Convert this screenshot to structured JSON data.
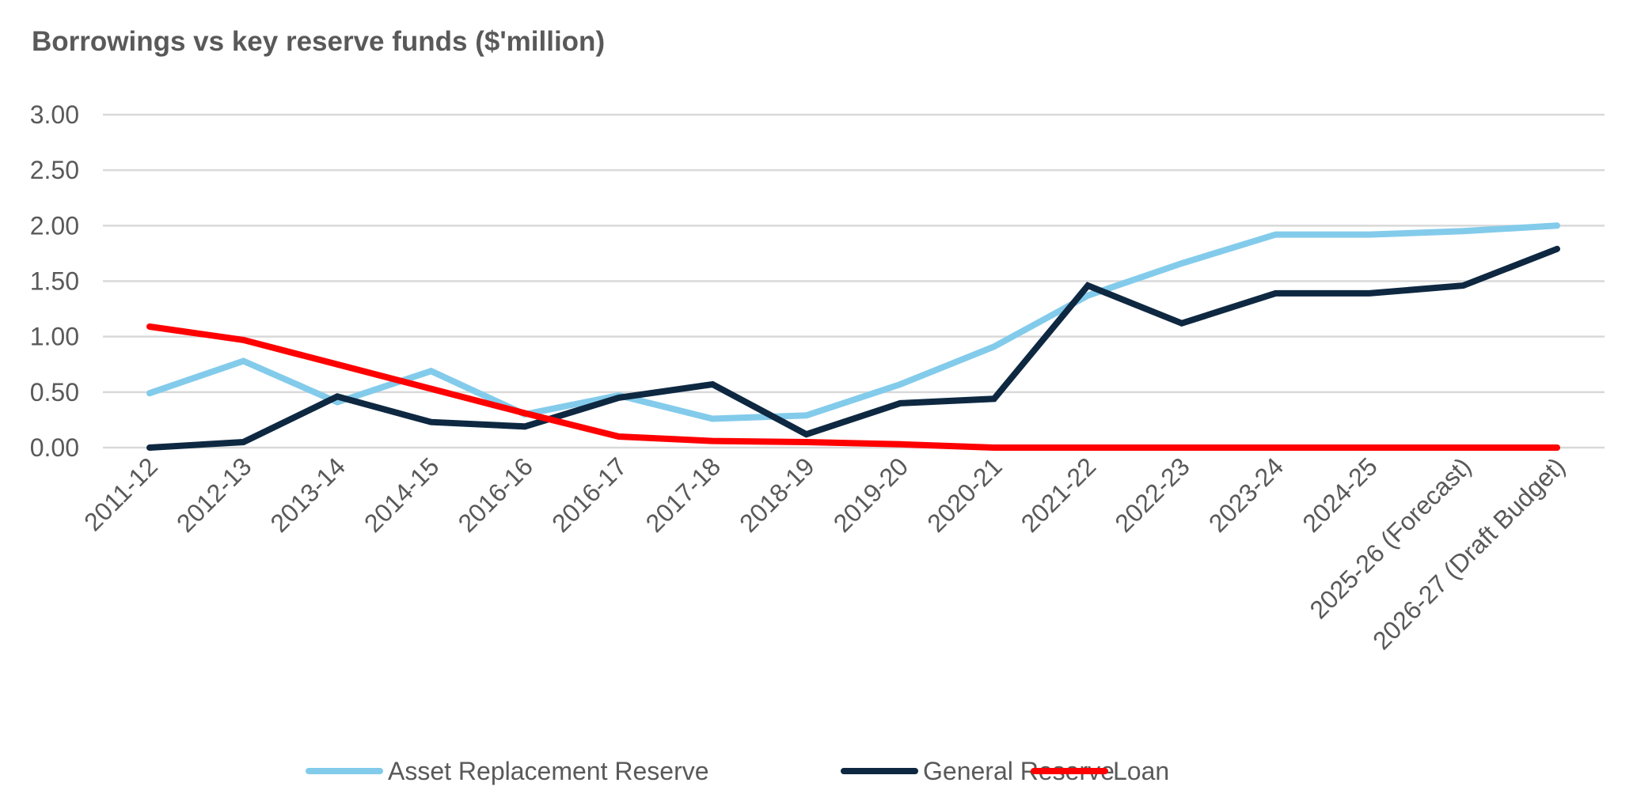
{
  "chart_data": {
    "type": "line",
    "title": "Borrowings vs key reserve funds ($'million)",
    "xlabel": "",
    "ylabel": "",
    "ylim": [
      0,
      3
    ],
    "yticks": [
      "0.00",
      "0.50",
      "1.00",
      "1.50",
      "2.00",
      "2.50",
      "3.00"
    ],
    "grid": true,
    "legend_position": "bottom",
    "categories": [
      "2011-12",
      "2012-13",
      "2013-14",
      "2014-15",
      "2016-16",
      "2016-17",
      "2017-18",
      "2018-19",
      "2019-20",
      "2020-21",
      "2021-22",
      "2022-23",
      "2023-24",
      "2024-25",
      "2025-26 (Forecast)",
      "2026-27 (Draft Budget)"
    ],
    "series": [
      {
        "name": "Asset Replacement Reserve",
        "color": "#83CBEB",
        "values": [
          0.49,
          0.78,
          0.41,
          0.69,
          0.3,
          0.47,
          0.26,
          0.29,
          0.57,
          0.91,
          1.37,
          1.66,
          1.92,
          1.92,
          1.95,
          2.0
        ]
      },
      {
        "name": "General Reserve",
        "color": "#0E2841",
        "values": [
          0.0,
          0.05,
          0.46,
          0.23,
          0.19,
          0.45,
          0.57,
          0.12,
          0.4,
          0.44,
          1.46,
          1.12,
          1.39,
          1.39,
          1.46,
          1.79
        ]
      },
      {
        "name": "Loan",
        "color": "#FF0000",
        "values": [
          1.09,
          0.97,
          0.75,
          0.53,
          0.31,
          0.1,
          0.06,
          0.05,
          0.03,
          0.0,
          0.0,
          0.0,
          0.0,
          0.0,
          0.0,
          0.0
        ]
      }
    ]
  }
}
